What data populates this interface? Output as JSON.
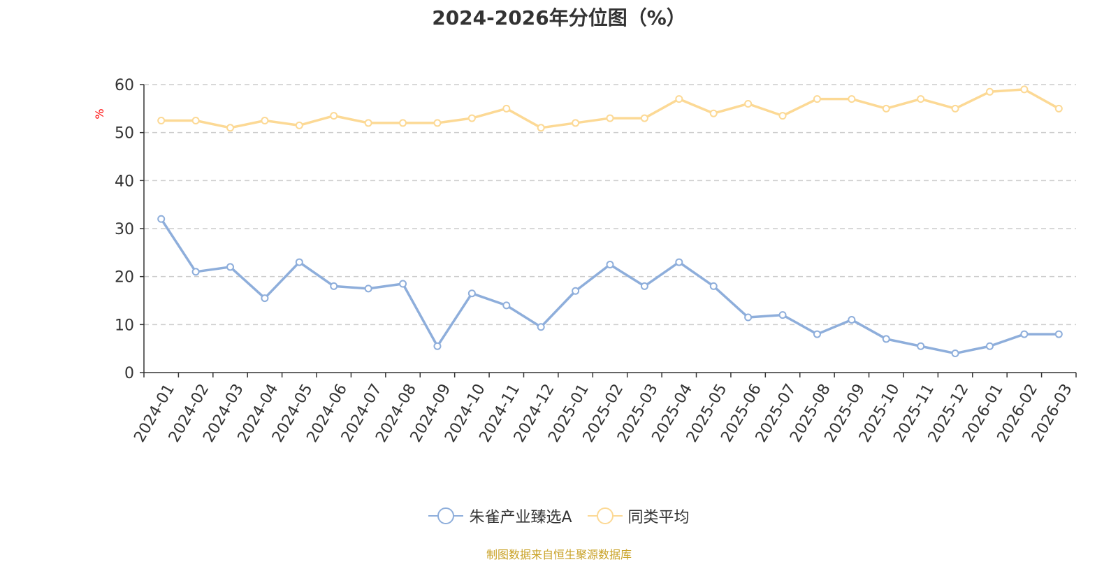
{
  "title": "2024-2026年分位图（%）",
  "source_note": "制图数据来自恒生聚源数据库",
  "colors": {
    "series_a": "#8eaedb",
    "series_b": "#fcd995",
    "axis": "#333333",
    "grid": "#cccccc",
    "unit_label": "#ff0000",
    "source": "#c9a227"
  },
  "chart_data": {
    "type": "line",
    "title": "2024-2026年分位图（%）",
    "xlabel": "",
    "ylabel": "%",
    "ylim": [
      0,
      60
    ],
    "yticks": [
      0,
      10,
      20,
      30,
      40,
      50,
      60
    ],
    "grid": true,
    "legend_position": "bottom-center",
    "categories": [
      "2024-01",
      "2024-02",
      "2024-03",
      "2024-04",
      "2024-05",
      "2024-06",
      "2024-07",
      "2024-08",
      "2024-09",
      "2024-10",
      "2024-11",
      "2024-12",
      "2025-01",
      "2025-02",
      "2025-03",
      "2025-04",
      "2025-05",
      "2025-06",
      "2025-07",
      "2025-08",
      "2025-09",
      "2025-10",
      "2025-11",
      "2025-12",
      "2026-01",
      "2026-02",
      "2026-03"
    ],
    "series": [
      {
        "name": "朱雀产业臻选A",
        "color": "#8eaedb",
        "values": [
          32,
          21,
          22,
          15.5,
          23,
          18,
          17.5,
          18.5,
          5.5,
          16.5,
          14,
          9.5,
          17,
          22.5,
          18,
          23,
          18,
          11.5,
          12,
          8,
          11,
          7,
          5.5,
          4,
          5.5,
          8,
          8
        ]
      },
      {
        "name": "同类平均",
        "color": "#fcd995",
        "values": [
          52.5,
          52.5,
          51,
          52.5,
          51.5,
          53.5,
          52,
          52,
          52,
          53,
          55,
          51,
          52,
          53,
          53,
          57,
          54,
          56,
          53.5,
          57,
          57,
          55,
          57,
          55,
          58.5,
          59,
          55
        ]
      }
    ]
  }
}
